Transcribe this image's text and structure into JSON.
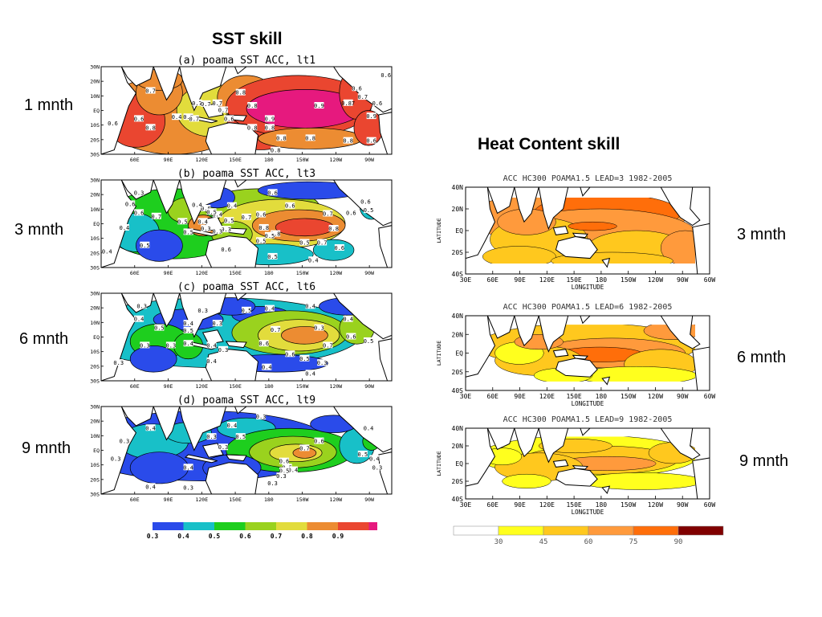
{
  "sst_title": "SST skill",
  "hc_title": "Heat Content skill",
  "left_lead_labels": [
    "1 mnth",
    "3 mnth",
    "6 mnth",
    "9 mnth"
  ],
  "right_lead_labels": [
    "3 mnth",
    "6 mnth",
    "9 mnth"
  ],
  "colors": {
    "sst": [
      "#2a4bea",
      "#18c0c8",
      "#1ece1e",
      "#9ad21e",
      "#e2dc3c",
      "#ec8c32",
      "#ea4630",
      "#e6197e"
    ],
    "hc": [
      "#ffffff",
      "#ffff1e",
      "#ffc81e",
      "#ff9a3c",
      "#ff6e0a",
      "#800000"
    ],
    "land": "#ffffff",
    "hc_land": "#ffffff"
  },
  "chart_data": [
    {
      "type": "heatmap",
      "title": "(a) poama SST ACC, lt1",
      "lead": "1 mnth",
      "x_tick_labels": [
        "60E",
        "90E",
        "120E",
        "150E",
        "180",
        "150W",
        "120W",
        "90W"
      ],
      "y_tick_labels": [
        "30N",
        "20N",
        "10N",
        "EQ",
        "10S",
        "20S",
        "30S"
      ],
      "xlim": [
        30,
        290
      ],
      "ylim": [
        -30,
        30
      ],
      "contour_labels": [
        "0.7",
        "0.8",
        "0.6",
        "0.7",
        "0.8",
        "0.6",
        "0.7",
        "0.6",
        "0.8",
        "0.8",
        "0.9",
        "0.87",
        "0.6",
        "0.7",
        "0.7",
        "0.4",
        "0.7",
        "0.7",
        "0.6",
        "0.8",
        "0.9",
        "0.9",
        "0.8",
        "0.8",
        "0.8",
        "0.8",
        "0.6",
        "0.6",
        "0.7"
      ],
      "levels": [
        0.3,
        0.4,
        0.5,
        0.6,
        0.7,
        0.8,
        0.9
      ]
    },
    {
      "type": "heatmap",
      "title": "(b) poama SST ACC, lt3",
      "lead": "3 mnth",
      "x_tick_labels": [
        "60E",
        "90E",
        "120E",
        "150E",
        "180",
        "150W",
        "120W",
        "90W"
      ],
      "y_tick_labels": [
        "30N",
        "20N",
        "10N",
        "EQ",
        "10S",
        "20S",
        "30S"
      ],
      "xlim": [
        30,
        290
      ],
      "ylim": [
        -30,
        30
      ],
      "contour_labels": [
        "0.3",
        "0.6",
        "0.6",
        "0.5",
        "0.7",
        "0.6",
        "0.5",
        "0.4",
        "0.5",
        "0.4",
        "0.4",
        "0.6",
        "0.7",
        "0.6",
        "0.8",
        "0.8",
        "0.7",
        "0.6",
        "0.5",
        "0.5",
        "0.6",
        "0.4",
        "0.5",
        "0.5",
        "0.5",
        "0.3",
        "0.3",
        "0.6",
        "0.5",
        "0.8",
        "0.7",
        "0.6",
        "0.4",
        "0.4",
        "0.5",
        "0.4",
        "0.3",
        "0.6"
      ],
      "levels": [
        0.3,
        0.4,
        0.5,
        0.6,
        0.7,
        0.8,
        0.9
      ]
    },
    {
      "type": "heatmap",
      "title": "(c) poama SST ACC, lt6",
      "lead": "6 mnth",
      "x_tick_labels": [
        "60E",
        "90E",
        "120E",
        "150E",
        "180",
        "150W",
        "120W",
        "90W"
      ],
      "y_tick_labels": [
        "30N",
        "20N",
        "10N",
        "EQ",
        "10S",
        "20S",
        "30S"
      ],
      "xlim": [
        30,
        290
      ],
      "ylim": [
        -30,
        30
      ],
      "contour_labels": [
        "0.3",
        "0.3",
        "0.3",
        "0.5",
        "0.4",
        "0.4",
        "0.4",
        "0.5",
        "0.5",
        "0.3",
        "0.4",
        "0.4",
        "0.7",
        "0.6",
        "0.3",
        "0.4",
        "0.3",
        "0.4",
        "0.3",
        "0.6",
        "0.4",
        "0.5",
        "0.7",
        "0.3",
        "0.4",
        "0.4",
        "0.5",
        "0.3",
        "0.6"
      ],
      "levels": [
        0.3,
        0.4,
        0.5,
        0.6,
        0.7,
        0.8,
        0.9
      ]
    },
    {
      "type": "heatmap",
      "title": "(d) poama SST ACC, lt9",
      "lead": "9 mnth",
      "x_tick_labels": [
        "60E",
        "90E",
        "120E",
        "150E",
        "180",
        "150W",
        "120W",
        "90W"
      ],
      "y_tick_labels": [
        "30N",
        "20N",
        "10N",
        "EQ",
        "10S",
        "20S",
        "30S"
      ],
      "xlim": [
        30,
        290
      ],
      "ylim": [
        -30,
        30
      ],
      "contour_labels": [
        "0.3",
        "0.4",
        "0.4",
        "0.5",
        "0.3",
        "0.3",
        "0.4",
        "0.3",
        "0.3",
        "0.4",
        "0.6",
        "0.7",
        "0.5",
        "0.4",
        "0.6",
        "0.5",
        "0.3",
        "0.3",
        "0.5",
        "0.4",
        "0.3",
        "0.4",
        "0.3"
      ],
      "levels": [
        0.3,
        0.4,
        0.5,
        0.6,
        0.7,
        0.8,
        0.9
      ]
    },
    {
      "type": "heatmap",
      "title": "ACC HC300 POAMA1.5 LEAD=3 1982-2005",
      "lead": "3 mnth",
      "xlabel": "LONGITUDE",
      "ylabel": "LATITUDE",
      "x_tick_labels": [
        "30E",
        "60E",
        "90E",
        "120E",
        "150E",
        "180",
        "150W",
        "120W",
        "90W",
        "60W"
      ],
      "y_tick_labels": [
        "40N",
        "20N",
        "EQ",
        "20S",
        "40S"
      ],
      "xlim": [
        30,
        300
      ],
      "ylim": [
        -40,
        40
      ],
      "levels": [
        30,
        45,
        60,
        75,
        90
      ]
    },
    {
      "type": "heatmap",
      "title": "ACC HC300 POAMA1.5 LEAD=6 1982-2005",
      "lead": "6 mnth",
      "xlabel": "LONGITUDE",
      "ylabel": "LATITUDE",
      "x_tick_labels": [
        "30E",
        "60E",
        "90E",
        "120E",
        "150E",
        "180",
        "150W",
        "120W",
        "90W",
        "60W"
      ],
      "y_tick_labels": [
        "40N",
        "20N",
        "EQ",
        "20S",
        "40S"
      ],
      "xlim": [
        30,
        300
      ],
      "ylim": [
        -40,
        40
      ],
      "levels": [
        30,
        45,
        60,
        75,
        90
      ]
    },
    {
      "type": "heatmap",
      "title": "ACC HC300 POAMA1.5 LEAD=9 1982-2005",
      "lead": "9 mnth",
      "xlabel": "LONGITUDE",
      "ylabel": "LATITUDE",
      "x_tick_labels": [
        "30E",
        "60E",
        "90E",
        "120E",
        "150E",
        "180",
        "150W",
        "120W",
        "90W",
        "60W"
      ],
      "y_tick_labels": [
        "40N",
        "20N",
        "EQ",
        "20S",
        "40S"
      ],
      "xlim": [
        30,
        300
      ],
      "ylim": [
        -40,
        40
      ],
      "levels": [
        30,
        45,
        60,
        75,
        90
      ]
    }
  ],
  "sst_legend": {
    "tick_labels": [
      "0.3",
      "0.4",
      "0.5",
      "0.6",
      "0.7",
      "0.8",
      "0.9"
    ]
  },
  "hc_legend": {
    "tick_labels": [
      "30",
      "45",
      "60",
      "75",
      "90"
    ]
  }
}
